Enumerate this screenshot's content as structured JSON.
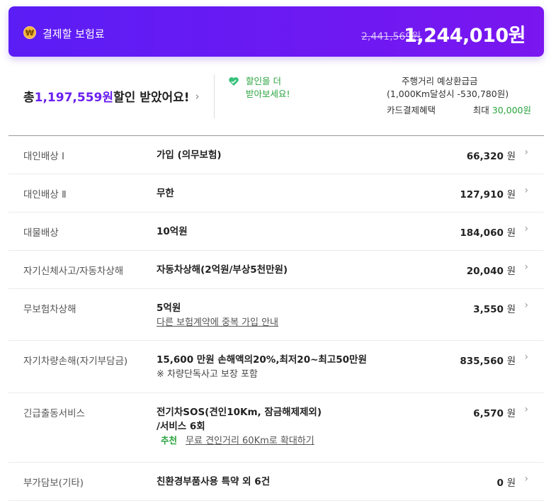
{
  "banner": {
    "title": "결제할 보험료",
    "coin_icon": "₩",
    "original_price": "2,441,569원",
    "final_price": "1,244,010원"
  },
  "discount": {
    "prefix": "총 ",
    "amount": "1,197,559원",
    "suffix": " 할인 받았어요!",
    "chevron": "›"
  },
  "more_discount": {
    "line1": "할인을 더",
    "line2": "받아보세요!"
  },
  "refund": {
    "line1": "주행거리 예상환급금",
    "line2": "(1,000Km달성시 -530,780원)",
    "card_label": "카드결제혜택",
    "card_prefix": "최대 ",
    "card_amount": "30,000원"
  },
  "rows": [
    {
      "label": "대인배상 Ⅰ",
      "value": "가입 (의무보험)",
      "price": "66,320",
      "unit": "원"
    },
    {
      "label": "대인배상 Ⅱ",
      "value": "무한",
      "price": "127,910",
      "unit": "원"
    },
    {
      "label": "대물배상",
      "value": "10억원",
      "price": "184,060",
      "unit": "원"
    },
    {
      "label": "자기신체사고/자동차상해",
      "value": "자동차상해(2억원/부상5천만원)",
      "price": "20,040",
      "unit": "원"
    },
    {
      "label": "무보험차상해",
      "value": "5억원",
      "link": "다른 보험계약에 중복 가입 안내",
      "price": "3,550",
      "unit": "원"
    },
    {
      "label": "자기차량손해(자기부담금)",
      "value": "15,600 만원 손해액의20%,최저20~최고50만원",
      "note": "※ 차량단독사고 보장 포함",
      "price": "835,560",
      "unit": "원"
    },
    {
      "label": "긴급출동서비스",
      "value": "전기차SOS(견인10Km, 잠금해제제외)",
      "value2": "/서비스 6회",
      "rec_badge": "추천",
      "rec_link": "무료 견인거리 60Km로 확대하기",
      "price": "6,570",
      "unit": "원"
    },
    {
      "label": "부가담보(기타)",
      "value": "친환경부품사용 특약 외 6건",
      "price": "0",
      "unit": "원"
    }
  ],
  "colors": {
    "accent": "#6a1ff0",
    "green": "#2aa33e"
  }
}
